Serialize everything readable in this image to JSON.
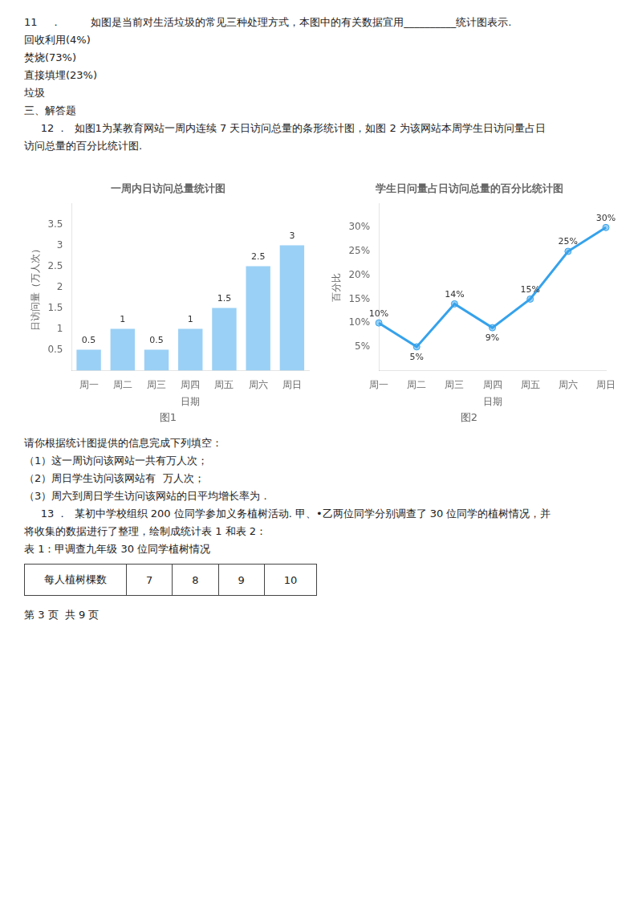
{
  "annotations": [
    [
      "11    ．         如图是当前对生活垃圾的常见三种处理方式，本图中的有关数据宜用__________统计图表示.",
      "回收利用(4%)",
      "焚烧(73%)",
      "直接填埋(23%)",
      "垃圾",
      "三、解答题",
      "     12 ．  如图1为某教育网站一周内连续 7 天日访问总量的条形统计图，如图 2 为该网站本周学生日访问量占日",
      "访问总量的百分比统计图."
    ],
    [
      "请你根据统计图提供的信息完成下列填空：",
      "（1）这一周访问该网站一共有万人次；",
      "（2）周日学生访问该网站有  万人次；",
      "（3）周六到周日学生访问该网站的日平均增长率为 .",
      "     13 ．  某初中学校组织 200 位同学参加义务植树活动. 甲、•乙两位同学分别调查了 30 位同学的植树情况，并",
      "将收集的数据进行了整理，绘制成统计表 1 和表 2：",
      "表 1：甲调查九年级 30 位同学植树情况",
      [
        "每人植树棵数",
        "7",
        "8",
        "9",
        "10"
      ],
      "第 3 页  共 9 页"
    ]
  ],
  "chart_data": [
    {
      "type": "bar",
      "title": "一周内日访问总量统计图",
      "subtitle": "图1",
      "xlabel": "日期",
      "ylabel": "日访问量（万人次）",
      "categories": [
        "周一",
        "周二",
        "周三",
        "周四",
        "周五",
        "周六",
        "周日"
      ],
      "values": [
        0.5,
        1.0,
        0.5,
        1.0,
        1.5,
        2.5,
        3.0
      ],
      "ylim": [
        0,
        4.0
      ],
      "yticks": [
        0.5,
        1,
        1.5,
        2,
        2.5,
        3,
        3.5
      ],
      "grid": false,
      "data_labels": true
    },
    {
      "type": "line",
      "title": "学生日问量占日访问总量的百分比统计图",
      "subtitle": "图2",
      "xlabel": "日期",
      "ylabel": "百分比",
      "categories": [
        "周一",
        "周二",
        "周三",
        "周四",
        "周五",
        "周六",
        "周日"
      ],
      "values": [
        10,
        5,
        14,
        9,
        15,
        25,
        30
      ],
      "value_labels": [
        "10%",
        "5%",
        "14%",
        "9%",
        "15%",
        "25%",
        "30%"
      ],
      "ylim": [
        0,
        35
      ],
      "yticks": [
        {
          "value": 5,
          "label": "5%"
        },
        {
          "value": 10,
          "label": "10%"
        },
        {
          "value": 15,
          "label": "15%"
        },
        {
          "value": 20,
          "label": "20%"
        },
        {
          "value": 25,
          "label": "25%"
        },
        {
          "value": 30,
          "label": "30%"
        }
      ],
      "grid": false,
      "data_labels": true,
      "marker": "circle"
    }
  ]
}
